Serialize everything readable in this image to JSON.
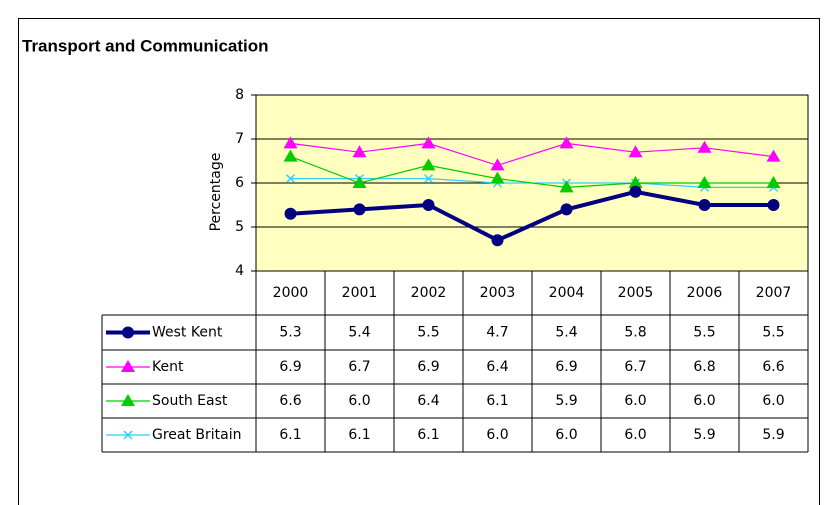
{
  "chart_data": {
    "type": "line",
    "title": "Transport and Communication",
    "y_label": "Percentage",
    "categories": [
      "2000",
      "2001",
      "2002",
      "2003",
      "2004",
      "2005",
      "2006",
      "2007"
    ],
    "series": [
      {
        "name": "West Kent",
        "color": "#000080",
        "marker": "circle",
        "values": [
          5.3,
          5.4,
          5.5,
          4.7,
          5.4,
          5.8,
          5.5,
          5.5
        ],
        "value_labels": [
          "5.3",
          "5.4",
          "5.5",
          "4.7",
          "5.4",
          "5.8",
          "5.5",
          "5.5"
        ]
      },
      {
        "name": "Kent",
        "color": "#ff00ff",
        "marker": "triangle",
        "values": [
          6.9,
          6.7,
          6.9,
          6.4,
          6.9,
          6.7,
          6.8,
          6.6
        ],
        "value_labels": [
          "6.9",
          "6.7",
          "6.9",
          "6.4",
          "6.9",
          "6.7",
          "6.8",
          "6.6"
        ]
      },
      {
        "name": "South East",
        "color": "#00cc00",
        "marker": "triangle",
        "values": [
          6.6,
          6,
          6.4,
          6.1,
          5.9,
          6,
          6,
          6
        ],
        "value_labels": [
          "6.6",
          "6.0",
          "6.4",
          "6.1",
          "5.9",
          "6.0",
          "6.0",
          "6.0"
        ]
      },
      {
        "name": "Great Britain",
        "color": "#33ccff",
        "marker": "x",
        "values": [
          6.1,
          6.1,
          6.1,
          6,
          6,
          6,
          5.9,
          5.9
        ],
        "value_labels": [
          "6.1",
          "6.1",
          "6.1",
          "6.0",
          "6.0",
          "6.0",
          "5.9",
          "5.9"
        ]
      }
    ],
    "ylim": [
      4,
      8
    ],
    "yticks": [
      4,
      5,
      6,
      7,
      8
    ],
    "grid": true,
    "plot_background": "#ffffc0"
  }
}
